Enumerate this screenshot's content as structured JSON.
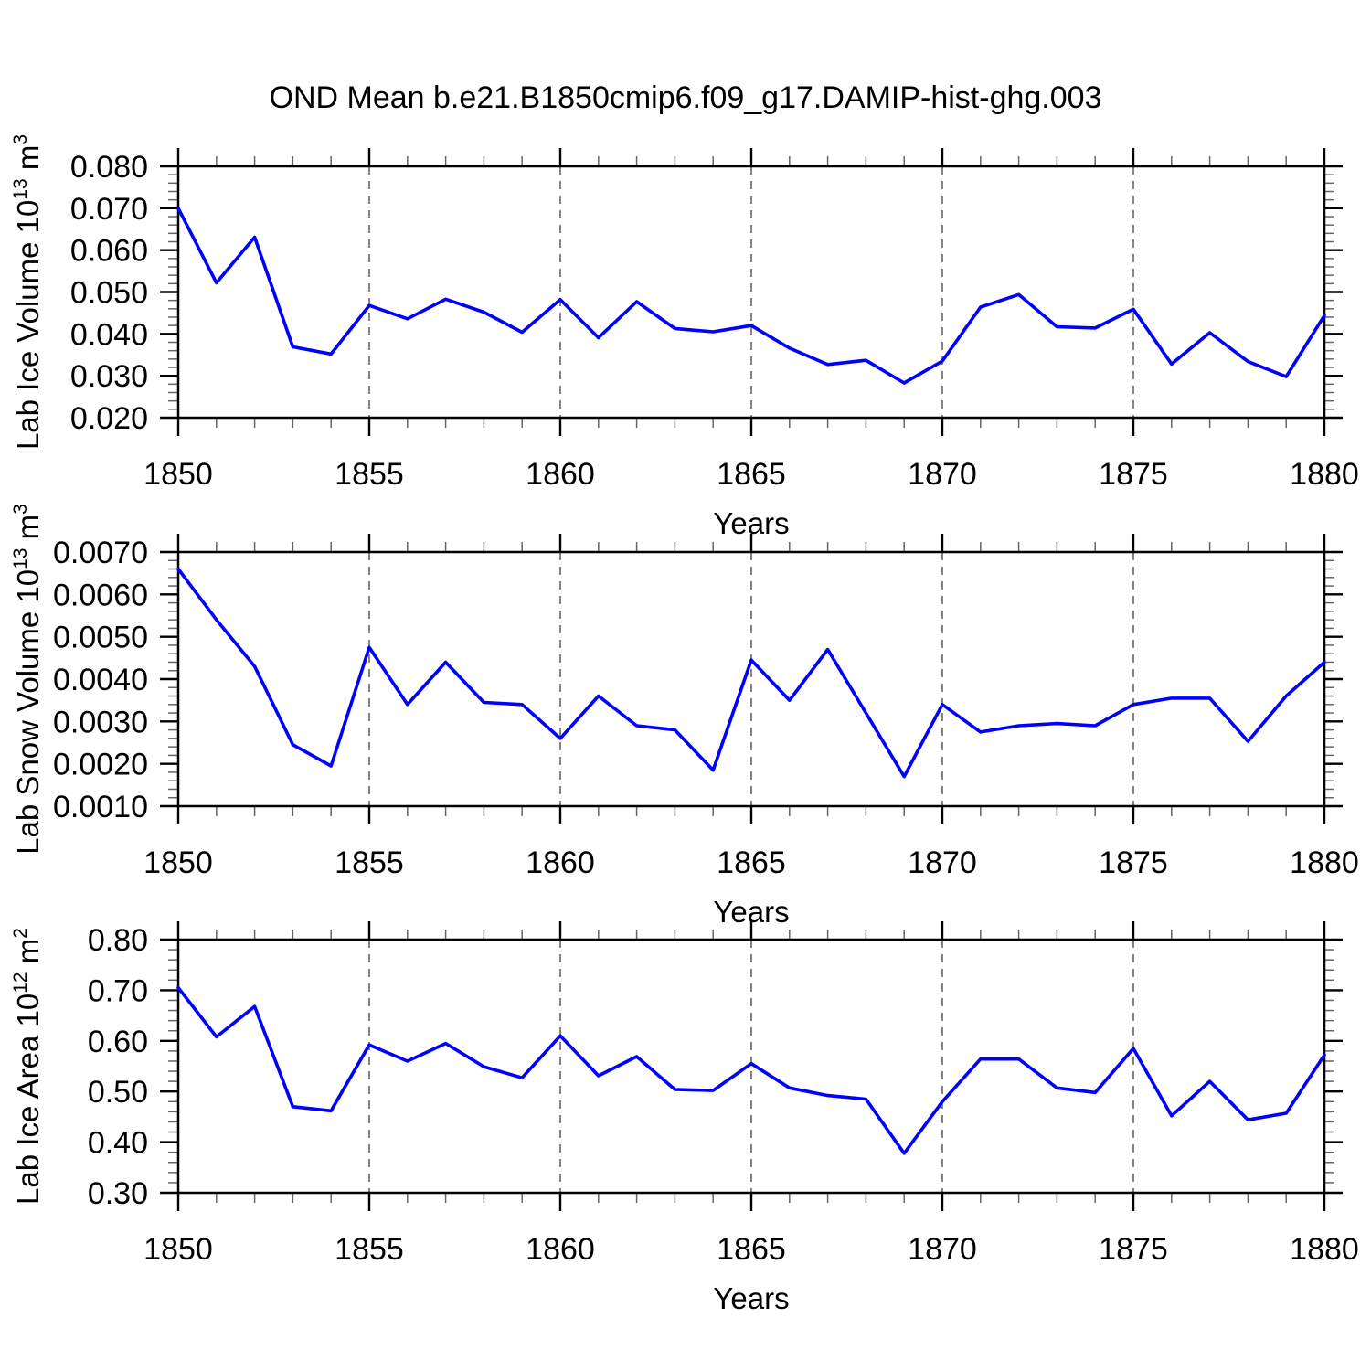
{
  "title": "OND Mean b.e21.B1850cmip6.f09_g17.DAMIP-hist-ghg.003",
  "colors": {
    "line": "#0000ff",
    "grid": "#777777",
    "axis": "#000000",
    "minor_tick": "#666666"
  },
  "chart_data": [
    {
      "type": "line",
      "name": "lab-ice-volume",
      "ylabel": "Lab Ice Volume 10^13 m^3",
      "ylabel_parts": [
        {
          "text": "Lab Ice Volume 10"
        },
        {
          "text": "13",
          "super": true
        },
        {
          "text": " m"
        },
        {
          "text": "3",
          "super": true
        }
      ],
      "xlabel": "Years",
      "xlim": [
        1850,
        1880
      ],
      "ylim": [
        0.02,
        0.08
      ],
      "y_major_step": 0.01,
      "y_minor_step": 0.002,
      "y_tick_labels": [
        "0.020",
        "0.030",
        "0.040",
        "0.050",
        "0.060",
        "0.070",
        "0.080"
      ],
      "x_major_ticks": [
        1850,
        1855,
        1860,
        1865,
        1870,
        1875,
        1880
      ],
      "x_tick_labels": [
        "1850",
        "1855",
        "1860",
        "1865",
        "1870",
        "1875",
        "1880"
      ],
      "x_minor_step": 1,
      "x_gridlines": [
        1855,
        1860,
        1865,
        1870,
        1875
      ],
      "x": [
        1850,
        1851,
        1852,
        1853,
        1854,
        1855,
        1856,
        1857,
        1858,
        1859,
        1860,
        1861,
        1862,
        1863,
        1864,
        1865,
        1866,
        1867,
        1868,
        1869,
        1870,
        1871,
        1872,
        1873,
        1874,
        1875,
        1876,
        1877,
        1878,
        1879,
        1880
      ],
      "values": [
        0.07,
        0.0522,
        0.0631,
        0.0369,
        0.0352,
        0.0468,
        0.0436,
        0.0483,
        0.0452,
        0.0404,
        0.0482,
        0.0391,
        0.0477,
        0.0413,
        0.0405,
        0.042,
        0.0366,
        0.0327,
        0.0337,
        0.0283,
        0.0335,
        0.0464,
        0.0494,
        0.0417,
        0.0414,
        0.0459,
        0.0328,
        0.0403,
        0.0334,
        0.0298,
        0.0444
      ]
    },
    {
      "type": "line",
      "name": "lab-snow-volume",
      "ylabel": "Lab Snow Volume 10^13 m^3",
      "ylabel_parts": [
        {
          "text": "Lab Snow Volume 10"
        },
        {
          "text": "13",
          "super": true
        },
        {
          "text": " m"
        },
        {
          "text": "3",
          "super": true
        }
      ],
      "xlabel": "Years",
      "xlim": [
        1850,
        1880
      ],
      "ylim": [
        0.001,
        0.007
      ],
      "y_major_step": 0.001,
      "y_minor_step": 0.0002,
      "y_tick_labels": [
        "0.0010",
        "0.0020",
        "0.0030",
        "0.0040",
        "0.0050",
        "0.0060",
        "0.0070"
      ],
      "x_major_ticks": [
        1850,
        1855,
        1860,
        1865,
        1870,
        1875,
        1880
      ],
      "x_tick_labels": [
        "1850",
        "1855",
        "1860",
        "1865",
        "1870",
        "1875",
        "1880"
      ],
      "x_minor_step": 1,
      "x_gridlines": [
        1855,
        1860,
        1865,
        1870,
        1875
      ],
      "x": [
        1850,
        1851,
        1852,
        1853,
        1854,
        1855,
        1856,
        1857,
        1858,
        1859,
        1860,
        1861,
        1862,
        1863,
        1864,
        1865,
        1866,
        1867,
        1868,
        1869,
        1870,
        1871,
        1872,
        1873,
        1874,
        1875,
        1876,
        1877,
        1878,
        1879,
        1880
      ],
      "values": [
        0.0066,
        0.0054,
        0.0043,
        0.00245,
        0.00195,
        0.00475,
        0.0034,
        0.0044,
        0.00345,
        0.0034,
        0.0026,
        0.0036,
        0.0029,
        0.0028,
        0.00185,
        0.00445,
        0.0035,
        0.0047,
        0.0032,
        0.0017,
        0.0034,
        0.00275,
        0.0029,
        0.00295,
        0.0029,
        0.0034,
        0.00355,
        0.00355,
        0.00253,
        0.0036,
        0.0044
      ]
    },
    {
      "type": "line",
      "name": "lab-ice-area",
      "ylabel": "Lab Ice Area 10^12 m^2",
      "ylabel_parts": [
        {
          "text": "Lab Ice Area 10"
        },
        {
          "text": "12",
          "super": true
        },
        {
          "text": " m"
        },
        {
          "text": "2",
          "super": true
        }
      ],
      "xlabel": "Years",
      "xlim": [
        1850,
        1880
      ],
      "ylim": [
        0.3,
        0.8
      ],
      "y_major_step": 0.1,
      "y_minor_step": 0.02,
      "y_tick_labels": [
        "0.30",
        "0.40",
        "0.50",
        "0.60",
        "0.70",
        "0.80"
      ],
      "x_major_ticks": [
        1850,
        1855,
        1860,
        1865,
        1870,
        1875,
        1880
      ],
      "x_tick_labels": [
        "1850",
        "1855",
        "1860",
        "1865",
        "1870",
        "1875",
        "1880"
      ],
      "x_minor_step": 1,
      "x_gridlines": [
        1855,
        1860,
        1865,
        1870,
        1875
      ],
      "x": [
        1850,
        1851,
        1852,
        1853,
        1854,
        1855,
        1856,
        1857,
        1858,
        1859,
        1860,
        1861,
        1862,
        1863,
        1864,
        1865,
        1866,
        1867,
        1868,
        1869,
        1870,
        1871,
        1872,
        1873,
        1874,
        1875,
        1876,
        1877,
        1878,
        1879,
        1880
      ],
      "values": [
        0.705,
        0.608,
        0.668,
        0.47,
        0.462,
        0.592,
        0.56,
        0.595,
        0.549,
        0.527,
        0.61,
        0.531,
        0.569,
        0.504,
        0.502,
        0.555,
        0.507,
        0.492,
        0.485,
        0.378,
        0.48,
        0.564,
        0.564,
        0.507,
        0.498,
        0.585,
        0.452,
        0.52,
        0.444,
        0.457,
        0.572
      ]
    }
  ]
}
